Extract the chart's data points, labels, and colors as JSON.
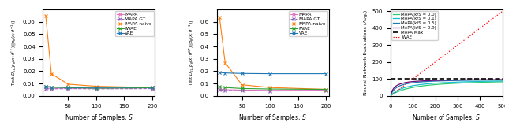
{
  "subplot1": {
    "ylabel": "Test $D_{KL}[p_\\theta(x;\\theta^{**})||p_\\theta(x;\\theta^{-1})]$",
    "xlabel": "Number of Samples, $S$",
    "xlim": [
      5,
      205
    ],
    "ylim": [
      0,
      0.07
    ],
    "yticks": [
      0.0,
      0.01,
      0.02,
      0.03,
      0.04,
      0.05,
      0.06
    ],
    "xticks": [
      50,
      100,
      150,
      200
    ],
    "series": {
      "MAPA": {
        "x": [
          10,
          20,
          50,
          100,
          200
        ],
        "y": [
          0.0063,
          0.0061,
          0.0063,
          0.006,
          0.0065
        ],
        "color": "#e377c2",
        "marker": "x",
        "linestyle": "-"
      },
      "MAPA GT": {
        "x": [
          10,
          20,
          50,
          100,
          200
        ],
        "y": [
          0.0056,
          0.0057,
          0.0059,
          0.0057,
          0.0059
        ],
        "color": "#9467bd",
        "marker": "x",
        "linestyle": "--"
      },
      "MAPA-naive": {
        "x": [
          10,
          20,
          50,
          100,
          200
        ],
        "y": [
          0.065,
          0.018,
          0.0095,
          0.0078,
          0.0067
        ],
        "color": "#ff7f0e",
        "marker": "x",
        "linestyle": "-"
      },
      "IWAE": {
        "x": [
          10,
          20,
          50,
          100,
          200
        ],
        "y": [
          0.0075,
          0.007,
          0.0067,
          0.0063,
          0.0066
        ],
        "color": "#2ca02c",
        "marker": "x",
        "linestyle": "-"
      },
      "VAE": {
        "x": [
          10,
          20,
          50,
          100,
          200
        ],
        "y": [
          0.0078,
          0.0072,
          0.007,
          0.0068,
          0.0072
        ],
        "color": "#1f77b4",
        "marker": "x",
        "linestyle": "-"
      }
    }
  },
  "subplot2": {
    "ylabel": "Test $D_{KL}[p_\\theta(x;\\theta^{GT})||p_\\theta(x;\\theta^{-1})]$",
    "xlabel": "Number of Samples, $S$",
    "xlim": [
      5,
      205
    ],
    "ylim": [
      0,
      0.7
    ],
    "yticks": [
      0.0,
      0.1,
      0.2,
      0.3,
      0.4,
      0.5,
      0.6
    ],
    "xticks": [
      50,
      100,
      150,
      200
    ],
    "series": {
      "MAPA": {
        "x": [
          10,
          20,
          50,
          100,
          200
        ],
        "y": [
          0.055,
          0.05,
          0.047,
          0.045,
          0.046
        ],
        "color": "#e377c2",
        "marker": "x",
        "linestyle": "-"
      },
      "MAPA GT": {
        "x": [
          10,
          20,
          50,
          100,
          200
        ],
        "y": [
          0.048,
          0.044,
          0.042,
          0.04,
          0.041
        ],
        "color": "#9467bd",
        "marker": "x",
        "linestyle": "--"
      },
      "MAPA-naive": {
        "x": [
          10,
          20,
          50,
          100,
          200
        ],
        "y": [
          0.64,
          0.27,
          0.09,
          0.068,
          0.053
        ],
        "color": "#ff7f0e",
        "marker": "x",
        "linestyle": "-"
      },
      "IWAE": {
        "x": [
          10,
          20,
          50,
          100,
          200
        ],
        "y": [
          0.075,
          0.068,
          0.06,
          0.056,
          0.053
        ],
        "color": "#2ca02c",
        "marker": "x",
        "linestyle": "-"
      },
      "VAE": {
        "x": [
          10,
          20,
          50,
          100,
          200
        ],
        "y": [
          0.19,
          0.186,
          0.182,
          0.18,
          0.18
        ],
        "color": "#1f77b4",
        "marker": "x",
        "linestyle": "-"
      }
    }
  },
  "subplot3": {
    "ylabel": "Neural Network Evaluations (Avg.)",
    "xlabel": "Number of Samples, $S$",
    "xlim": [
      0,
      500
    ],
    "ylim": [
      0,
      510
    ],
    "yticks": [
      0,
      100,
      200,
      300,
      400,
      500
    ],
    "xticks": [
      0,
      100,
      200,
      300,
      400,
      500
    ],
    "series": {
      "MAPA(k/S = 0.0)": {
        "color": "#2ecc71",
        "linestyle": "-"
      },
      "MAPA(k/S = 0.1)": {
        "color": "#17becf",
        "linestyle": "-"
      },
      "MAPA(k/S = 0.5)": {
        "color": "#1f77b4",
        "linestyle": "-"
      },
      "MAPA(k/S = 0.9)": {
        "color": "#6a0572",
        "linestyle": "-"
      },
      "MAPA Max": {
        "color": "#000000",
        "linestyle": "--"
      },
      "IWAE": {
        "color": "#ff0000",
        "linestyle": ":"
      }
    },
    "mapa_asymptote": 100
  }
}
